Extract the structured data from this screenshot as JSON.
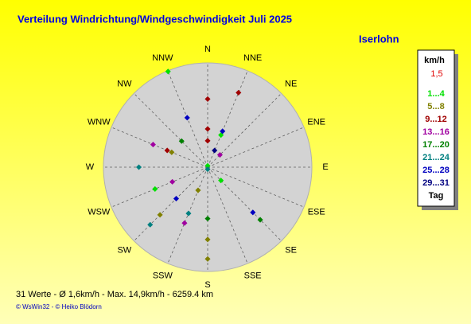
{
  "chart_data": {
    "type": "polar-scatter",
    "title": "Verteilung Windrichtung/Windgeschwindigkeit  Juli 2025",
    "subtitle": "Iserlohn",
    "directions": [
      "N",
      "NNE",
      "NE",
      "ENE",
      "E",
      "ESE",
      "SE",
      "SSE",
      "S",
      "SSW",
      "SW",
      "WSW",
      "W",
      "WNW",
      "NW",
      "NNW"
    ],
    "rlim": [
      0,
      15
    ],
    "legend_title": "km/h",
    "legend_note": "1,5",
    "legend_footer": "Tag",
    "series": [
      {
        "name": "1...4",
        "color": "#00e000",
        "points": [
          {
            "angle": 337.5,
            "r": 14.9
          },
          {
            "angle": 22.5,
            "r": 5.0
          },
          {
            "angle": 135,
            "r": 2.7
          },
          {
            "angle": 247.5,
            "r": 8.2
          },
          {
            "angle": 0,
            "r": 0.2
          }
        ]
      },
      {
        "name": "5...8",
        "color": "#808000",
        "points": [
          {
            "angle": 292.5,
            "r": 5.6
          },
          {
            "angle": 202.5,
            "r": 3.6
          },
          {
            "angle": 225,
            "r": 9.7
          },
          {
            "angle": 180,
            "r": 10.4
          },
          {
            "angle": 180,
            "r": 13.2
          }
        ]
      },
      {
        "name": "9...12",
        "color": "#a00000",
        "points": [
          {
            "angle": 22.5,
            "r": 11.6
          },
          {
            "angle": 0,
            "r": 9.8
          },
          {
            "angle": 0,
            "r": 5.5
          },
          {
            "angle": 0,
            "r": 3.8
          },
          {
            "angle": 292.5,
            "r": 6.3
          }
        ]
      },
      {
        "name": "13...16",
        "color": "#a000a0",
        "points": [
          {
            "angle": 292.5,
            "r": 8.5
          },
          {
            "angle": 45,
            "r": 2.5
          },
          {
            "angle": 247.5,
            "r": 5.5
          },
          {
            "angle": 202.5,
            "r": 8.7
          }
        ]
      },
      {
        "name": "17...20",
        "color": "#008000",
        "points": [
          {
            "angle": 315,
            "r": 5.3
          },
          {
            "angle": 180,
            "r": 7.4
          },
          {
            "angle": 135,
            "r": 10.7
          }
        ]
      },
      {
        "name": "21...24",
        "color": "#008080",
        "points": [
          {
            "angle": 270,
            "r": 9.9
          },
          {
            "angle": 202.5,
            "r": 7.2
          },
          {
            "angle": 225,
            "r": 11.7
          },
          {
            "angle": 180,
            "r": 0.3
          }
        ]
      },
      {
        "name": "25...28",
        "color": "#0000c0",
        "points": [
          {
            "angle": 337.5,
            "r": 7.7
          },
          {
            "angle": 22.5,
            "r": 5.6
          },
          {
            "angle": 225,
            "r": 6.4
          },
          {
            "angle": 135,
            "r": 9.2
          }
        ]
      },
      {
        "name": "29...31",
        "color": "#000080",
        "points": [
          {
            "angle": 22.5,
            "r": 2.6
          }
        ]
      }
    ],
    "summary": "31 Werte   -   Ø 1,6km/h  -  Max. 14,9km/h  -   6259.4 km",
    "copyright": "© WsWin32  -  © Heiko Blödorn"
  }
}
